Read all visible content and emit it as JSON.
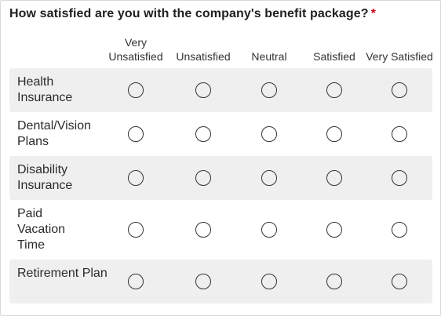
{
  "question": {
    "text": "How satisfied are you with the company's benefit package?",
    "required_marker": "*"
  },
  "columns": [
    {
      "label": "Very Unsatisfied"
    },
    {
      "label": "Unsatisfied"
    },
    {
      "label": "Neutral"
    },
    {
      "label": "Satisfied"
    },
    {
      "label": "Very Satisfied"
    }
  ],
  "rows": [
    {
      "label": "Health Insurance",
      "selected": null
    },
    {
      "label": "Dental/Vision Plans",
      "selected": null
    },
    {
      "label": "Disability Insurance",
      "selected": null
    },
    {
      "label": "Paid Vacation Time",
      "selected": null
    },
    {
      "label": "Retirement Plan",
      "selected": null
    }
  ],
  "colors": {
    "required": "#d0021b",
    "row_shade": "#efefef"
  }
}
